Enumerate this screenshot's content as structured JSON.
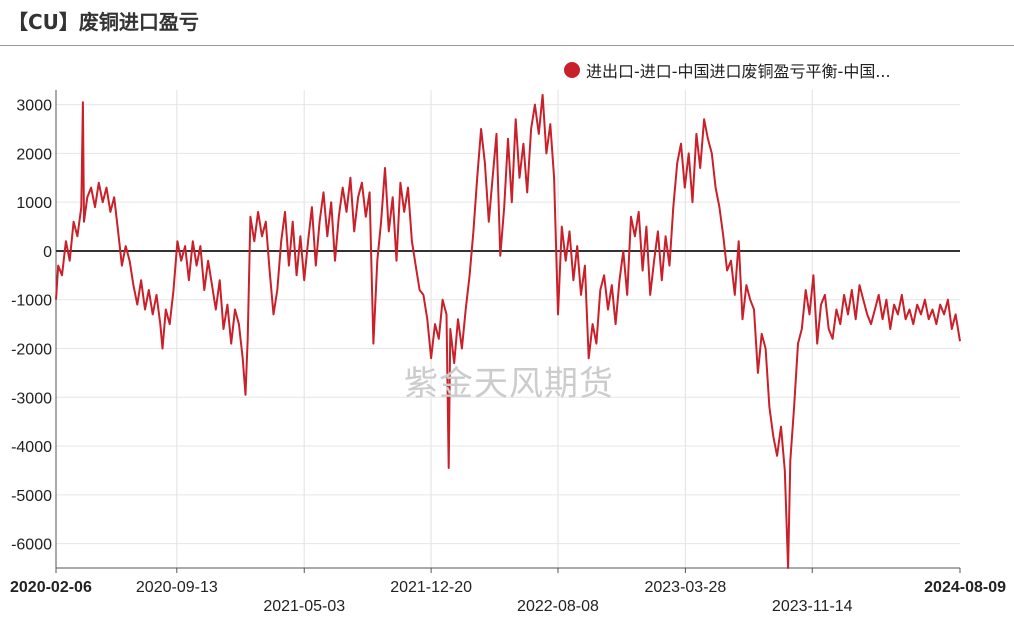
{
  "header": {
    "title": "【CU】废铜进口盈亏"
  },
  "watermark": "紫金天风期货",
  "colors": {
    "series": "#c9202a",
    "grid": "#e6e6e6",
    "zero": "#333333",
    "axis": "#555555"
  },
  "chart_data": {
    "type": "line",
    "title": "【CU】废铜进口盈亏",
    "xlabel": "",
    "ylabel": "",
    "ylim": [
      -6500,
      3300
    ],
    "yticks": [
      3000,
      2000,
      1000,
      0,
      -1000,
      -2000,
      -3000,
      -4000,
      -5000,
      -6000
    ],
    "xlim": [
      "2020-02-06",
      "2024-08-09"
    ],
    "xticks": [
      {
        "label": "2020-02-06",
        "bold": true,
        "row": 0
      },
      {
        "label": "2020-09-13",
        "bold": false,
        "row": 0
      },
      {
        "label": "2021-05-03",
        "bold": false,
        "row": 1
      },
      {
        "label": "2021-12-20",
        "bold": false,
        "row": 0
      },
      {
        "label": "2022-08-08",
        "bold": false,
        "row": 1
      },
      {
        "label": "2023-03-28",
        "bold": false,
        "row": 0
      },
      {
        "label": "2023-11-14",
        "bold": false,
        "row": 1
      },
      {
        "label": "2024-08-09",
        "bold": true,
        "row": 0
      }
    ],
    "grid": true,
    "legend_position": "top-right",
    "series": [
      {
        "name": "进出口-进口-中国进口废铜盈亏平衡-中国...",
        "color": "#c9202a",
        "points": [
          [
            "2020-02-06",
            -1000
          ],
          [
            "2020-02-10",
            -300
          ],
          [
            "2020-02-17",
            -500
          ],
          [
            "2020-02-24",
            200
          ],
          [
            "2020-03-02",
            -200
          ],
          [
            "2020-03-09",
            600
          ],
          [
            "2020-03-16",
            300
          ],
          [
            "2020-03-23",
            900
          ],
          [
            "2020-03-26",
            3050
          ],
          [
            "2020-03-28",
            600
          ],
          [
            "2020-04-03",
            1100
          ],
          [
            "2020-04-10",
            1300
          ],
          [
            "2020-04-17",
            900
          ],
          [
            "2020-04-24",
            1400
          ],
          [
            "2020-05-01",
            1000
          ],
          [
            "2020-05-08",
            1300
          ],
          [
            "2020-05-15",
            800
          ],
          [
            "2020-05-22",
            1100
          ],
          [
            "2020-05-29",
            400
          ],
          [
            "2020-06-05",
            -300
          ],
          [
            "2020-06-12",
            100
          ],
          [
            "2020-06-19",
            -200
          ],
          [
            "2020-06-26",
            -700
          ],
          [
            "2020-07-03",
            -1100
          ],
          [
            "2020-07-10",
            -600
          ],
          [
            "2020-07-17",
            -1200
          ],
          [
            "2020-07-24",
            -800
          ],
          [
            "2020-07-31",
            -1300
          ],
          [
            "2020-08-07",
            -900
          ],
          [
            "2020-08-14",
            -1500
          ],
          [
            "2020-08-18",
            -2000
          ],
          [
            "2020-08-24",
            -1200
          ],
          [
            "2020-08-31",
            -1500
          ],
          [
            "2020-09-07",
            -800
          ],
          [
            "2020-09-14",
            200
          ],
          [
            "2020-09-21",
            -200
          ],
          [
            "2020-09-28",
            100
          ],
          [
            "2020-10-05",
            -600
          ],
          [
            "2020-10-12",
            200
          ],
          [
            "2020-10-19",
            -300
          ],
          [
            "2020-10-26",
            100
          ],
          [
            "2020-11-02",
            -800
          ],
          [
            "2020-11-09",
            -200
          ],
          [
            "2020-11-16",
            -700
          ],
          [
            "2020-11-23",
            -1200
          ],
          [
            "2020-11-30",
            -600
          ],
          [
            "2020-12-07",
            -1600
          ],
          [
            "2020-12-14",
            -1100
          ],
          [
            "2020-12-21",
            -1900
          ],
          [
            "2020-12-28",
            -1200
          ],
          [
            "2021-01-04",
            -1500
          ],
          [
            "2021-01-11",
            -2200
          ],
          [
            "2021-01-16",
            -2950
          ],
          [
            "2021-01-20",
            -1800
          ],
          [
            "2021-01-25",
            700
          ],
          [
            "2021-02-01",
            200
          ],
          [
            "2021-02-08",
            800
          ],
          [
            "2021-02-15",
            300
          ],
          [
            "2021-02-22",
            600
          ],
          [
            "2021-03-01",
            -400
          ],
          [
            "2021-03-08",
            -1300
          ],
          [
            "2021-03-15",
            -800
          ],
          [
            "2021-03-22",
            200
          ],
          [
            "2021-03-29",
            800
          ],
          [
            "2021-04-05",
            -300
          ],
          [
            "2021-04-12",
            600
          ],
          [
            "2021-04-19",
            -500
          ],
          [
            "2021-04-26",
            300
          ],
          [
            "2021-05-03",
            -600
          ],
          [
            "2021-05-10",
            200
          ],
          [
            "2021-05-17",
            900
          ],
          [
            "2021-05-24",
            -300
          ],
          [
            "2021-05-31",
            600
          ],
          [
            "2021-06-07",
            1200
          ],
          [
            "2021-06-14",
            300
          ],
          [
            "2021-06-21",
            1000
          ],
          [
            "2021-06-28",
            -200
          ],
          [
            "2021-07-05",
            700
          ],
          [
            "2021-07-12",
            1300
          ],
          [
            "2021-07-19",
            800
          ],
          [
            "2021-07-26",
            1500
          ],
          [
            "2021-08-02",
            400
          ],
          [
            "2021-08-09",
            1100
          ],
          [
            "2021-08-16",
            1400
          ],
          [
            "2021-08-23",
            700
          ],
          [
            "2021-08-30",
            1200
          ],
          [
            "2021-09-06",
            -1900
          ],
          [
            "2021-09-13",
            -200
          ],
          [
            "2021-09-20",
            600
          ],
          [
            "2021-09-27",
            1700
          ],
          [
            "2021-10-04",
            400
          ],
          [
            "2021-10-11",
            1100
          ],
          [
            "2021-10-18",
            -200
          ],
          [
            "2021-10-25",
            1400
          ],
          [
            "2021-11-01",
            800
          ],
          [
            "2021-11-08",
            1300
          ],
          [
            "2021-11-15",
            200
          ],
          [
            "2021-11-22",
            -300
          ],
          [
            "2021-11-29",
            -800
          ],
          [
            "2021-12-06",
            -900
          ],
          [
            "2021-12-13",
            -1400
          ],
          [
            "2021-12-20",
            -2200
          ],
          [
            "2021-12-27",
            -1500
          ],
          [
            "2022-01-03",
            -1800
          ],
          [
            "2022-01-10",
            -1000
          ],
          [
            "2022-01-17",
            -1300
          ],
          [
            "2022-01-21",
            -4450
          ],
          [
            "2022-01-24",
            -1600
          ],
          [
            "2022-01-31",
            -2300
          ],
          [
            "2022-02-07",
            -1400
          ],
          [
            "2022-02-14",
            -2000
          ],
          [
            "2022-02-21",
            -1200
          ],
          [
            "2022-02-28",
            -500
          ],
          [
            "2022-03-07",
            400
          ],
          [
            "2022-03-14",
            1500
          ],
          [
            "2022-03-21",
            2500
          ],
          [
            "2022-03-28",
            1800
          ],
          [
            "2022-04-04",
            600
          ],
          [
            "2022-04-11",
            1500
          ],
          [
            "2022-04-18",
            2400
          ],
          [
            "2022-04-25",
            -100
          ],
          [
            "2022-05-02",
            900
          ],
          [
            "2022-05-09",
            2300
          ],
          [
            "2022-05-16",
            1000
          ],
          [
            "2022-05-23",
            2700
          ],
          [
            "2022-05-30",
            1500
          ],
          [
            "2022-06-06",
            2200
          ],
          [
            "2022-06-13",
            1200
          ],
          [
            "2022-06-20",
            2500
          ],
          [
            "2022-06-27",
            3000
          ],
          [
            "2022-07-04",
            2400
          ],
          [
            "2022-07-11",
            3200
          ],
          [
            "2022-07-18",
            2000
          ],
          [
            "2022-07-25",
            2600
          ],
          [
            "2022-08-01",
            1500
          ],
          [
            "2022-08-08",
            -1300
          ],
          [
            "2022-08-15",
            500
          ],
          [
            "2022-08-22",
            -200
          ],
          [
            "2022-08-29",
            400
          ],
          [
            "2022-09-05",
            -600
          ],
          [
            "2022-09-12",
            100
          ],
          [
            "2022-09-19",
            -900
          ],
          [
            "2022-09-26",
            -300
          ],
          [
            "2022-10-03",
            -2200
          ],
          [
            "2022-10-10",
            -1500
          ],
          [
            "2022-10-17",
            -1900
          ],
          [
            "2022-10-24",
            -800
          ],
          [
            "2022-10-31",
            -500
          ],
          [
            "2022-11-07",
            -1200
          ],
          [
            "2022-11-14",
            -700
          ],
          [
            "2022-11-21",
            -1500
          ],
          [
            "2022-11-28",
            -600
          ],
          [
            "2022-12-05",
            0
          ],
          [
            "2022-12-12",
            -900
          ],
          [
            "2022-12-19",
            700
          ],
          [
            "2022-12-26",
            300
          ],
          [
            "2023-01-02",
            800
          ],
          [
            "2023-01-09",
            -400
          ],
          [
            "2023-01-16",
            500
          ],
          [
            "2023-01-23",
            -900
          ],
          [
            "2023-01-30",
            -200
          ],
          [
            "2023-02-06",
            400
          ],
          [
            "2023-02-13",
            -600
          ],
          [
            "2023-02-20",
            300
          ],
          [
            "2023-02-27",
            -300
          ],
          [
            "2023-03-06",
            900
          ],
          [
            "2023-03-13",
            1800
          ],
          [
            "2023-03-20",
            2200
          ],
          [
            "2023-03-27",
            1300
          ],
          [
            "2023-04-03",
            2000
          ],
          [
            "2023-04-10",
            1000
          ],
          [
            "2023-04-17",
            2400
          ],
          [
            "2023-04-24",
            1700
          ],
          [
            "2023-05-01",
            2700
          ],
          [
            "2023-05-08",
            2300
          ],
          [
            "2023-05-15",
            2000
          ],
          [
            "2023-05-22",
            1300
          ],
          [
            "2023-05-29",
            900
          ],
          [
            "2023-06-05",
            300
          ],
          [
            "2023-06-12",
            -400
          ],
          [
            "2023-06-19",
            -200
          ],
          [
            "2023-06-26",
            -900
          ],
          [
            "2023-07-03",
            200
          ],
          [
            "2023-07-10",
            -1400
          ],
          [
            "2023-07-17",
            -700
          ],
          [
            "2023-07-24",
            -1000
          ],
          [
            "2023-07-31",
            -1200
          ],
          [
            "2023-08-07",
            -2500
          ],
          [
            "2023-08-14",
            -1700
          ],
          [
            "2023-08-21",
            -2000
          ],
          [
            "2023-08-28",
            -3200
          ],
          [
            "2023-09-04",
            -3800
          ],
          [
            "2023-09-11",
            -4200
          ],
          [
            "2023-09-18",
            -3600
          ],
          [
            "2023-09-25",
            -4500
          ],
          [
            "2023-10-01",
            -6500
          ],
          [
            "2023-10-05",
            -4300
          ],
          [
            "2023-10-12",
            -3200
          ],
          [
            "2023-10-19",
            -1900
          ],
          [
            "2023-10-26",
            -1600
          ],
          [
            "2023-11-02",
            -800
          ],
          [
            "2023-11-09",
            -1300
          ],
          [
            "2023-11-16",
            -500
          ],
          [
            "2023-11-23",
            -1900
          ],
          [
            "2023-11-30",
            -1100
          ],
          [
            "2023-12-07",
            -900
          ],
          [
            "2023-12-14",
            -1600
          ],
          [
            "2023-12-21",
            -1800
          ],
          [
            "2023-12-28",
            -1200
          ],
          [
            "2024-01-04",
            -1500
          ],
          [
            "2024-01-11",
            -900
          ],
          [
            "2024-01-18",
            -1300
          ],
          [
            "2024-01-25",
            -800
          ],
          [
            "2024-02-01",
            -1400
          ],
          [
            "2024-02-08",
            -700
          ],
          [
            "2024-02-15",
            -1000
          ],
          [
            "2024-02-22",
            -1300
          ],
          [
            "2024-02-29",
            -1500
          ],
          [
            "2024-03-07",
            -1200
          ],
          [
            "2024-03-14",
            -900
          ],
          [
            "2024-03-21",
            -1400
          ],
          [
            "2024-03-28",
            -1000
          ],
          [
            "2024-04-04",
            -1600
          ],
          [
            "2024-04-11",
            -1100
          ],
          [
            "2024-04-18",
            -1300
          ],
          [
            "2024-04-25",
            -900
          ],
          [
            "2024-05-02",
            -1400
          ],
          [
            "2024-05-09",
            -1200
          ],
          [
            "2024-05-16",
            -1500
          ],
          [
            "2024-05-23",
            -1100
          ],
          [
            "2024-05-30",
            -1300
          ],
          [
            "2024-06-06",
            -1000
          ],
          [
            "2024-06-13",
            -1400
          ],
          [
            "2024-06-20",
            -1200
          ],
          [
            "2024-06-27",
            -1500
          ],
          [
            "2024-07-04",
            -1100
          ],
          [
            "2024-07-11",
            -1300
          ],
          [
            "2024-07-18",
            -1000
          ],
          [
            "2024-07-25",
            -1600
          ],
          [
            "2024-08-01",
            -1300
          ],
          [
            "2024-08-09",
            -1850
          ]
        ]
      }
    ]
  }
}
